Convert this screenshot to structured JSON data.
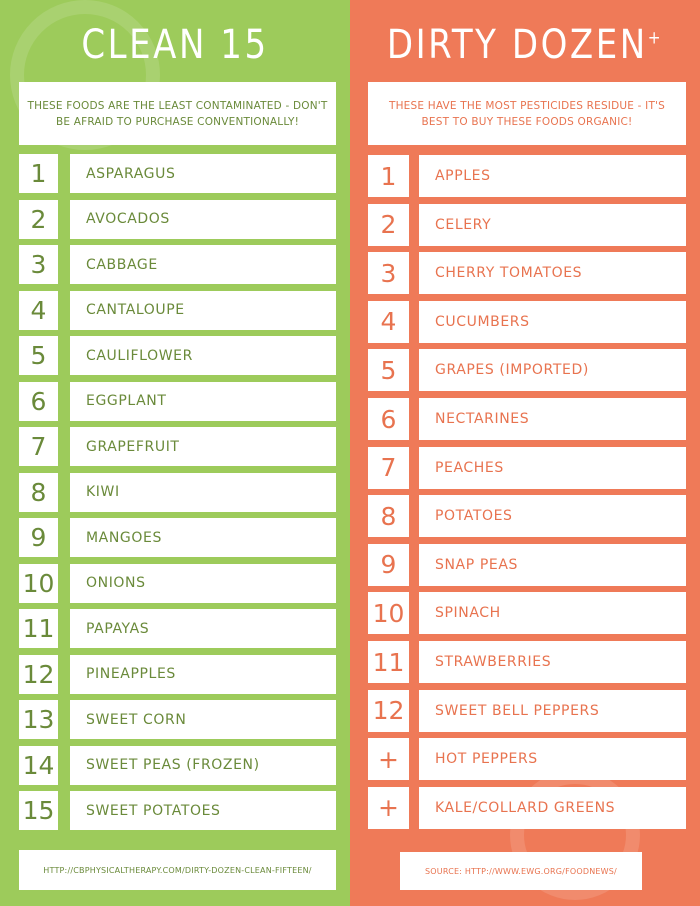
{
  "colors": {
    "clean_bg": "#9dcb5b",
    "dirty_bg": "#ef7a58",
    "clean_text": "#6a8a3a",
    "dirty_text": "#e8734f"
  },
  "clean": {
    "title": "CLEAN 15",
    "description": "THESE FOODS ARE THE LEAST CONTAMINATED - DON'T BE AFRAID TO PURCHASE CONVENTIONALLY!",
    "items": [
      {
        "rank": "1",
        "name": "ASPARAGUS"
      },
      {
        "rank": "2",
        "name": "AVOCADOS"
      },
      {
        "rank": "3",
        "name": "CABBAGE"
      },
      {
        "rank": "4",
        "name": "CANTALOUPE"
      },
      {
        "rank": "5",
        "name": "CAULIFLOWER"
      },
      {
        "rank": "6",
        "name": "EGGPLANT"
      },
      {
        "rank": "7",
        "name": "GRAPEFRUIT"
      },
      {
        "rank": "8",
        "name": "KIWI"
      },
      {
        "rank": "9",
        "name": "MANGOES"
      },
      {
        "rank": "10",
        "name": "ONIONS"
      },
      {
        "rank": "11",
        "name": "PAPAYAS"
      },
      {
        "rank": "12",
        "name": "PINEAPPLES"
      },
      {
        "rank": "13",
        "name": "SWEET CORN"
      },
      {
        "rank": "14",
        "name": "SWEET PEAS (FROZEN)"
      },
      {
        "rank": "15",
        "name": "SWEET POTATOES"
      }
    ],
    "footer": "HTTP://CBPHYSICALTHERAPY.COM/DIRTY-DOZEN-CLEAN-FIFTEEN/"
  },
  "dirty": {
    "title": "DIRTY DOZEN",
    "title_sup": "+",
    "description": "THESE HAVE THE MOST PESTICIDES RESIDUE - IT'S BEST TO BUY THESE FOODS ORGANIC!",
    "items": [
      {
        "rank": "1",
        "name": "APPLES"
      },
      {
        "rank": "2",
        "name": "CELERY"
      },
      {
        "rank": "3",
        "name": "CHERRY TOMATOES"
      },
      {
        "rank": "4",
        "name": "CUCUMBERS"
      },
      {
        "rank": "5",
        "name": "GRAPES (IMPORTED)"
      },
      {
        "rank": "6",
        "name": "NECTARINES"
      },
      {
        "rank": "7",
        "name": "PEACHES"
      },
      {
        "rank": "8",
        "name": "POTATOES"
      },
      {
        "rank": "9",
        "name": "SNAP PEAS"
      },
      {
        "rank": "10",
        "name": "SPINACH"
      },
      {
        "rank": "11",
        "name": "STRAWBERRIES"
      },
      {
        "rank": "12",
        "name": "SWEET BELL PEPPERS"
      },
      {
        "rank": "+",
        "name": "HOT PEPPERS"
      },
      {
        "rank": "+",
        "name": "KALE/COLLARD GREENS"
      }
    ],
    "footer": "SOURCE: HTTP://WWW.EWG.ORG/FOODNEWS/"
  }
}
